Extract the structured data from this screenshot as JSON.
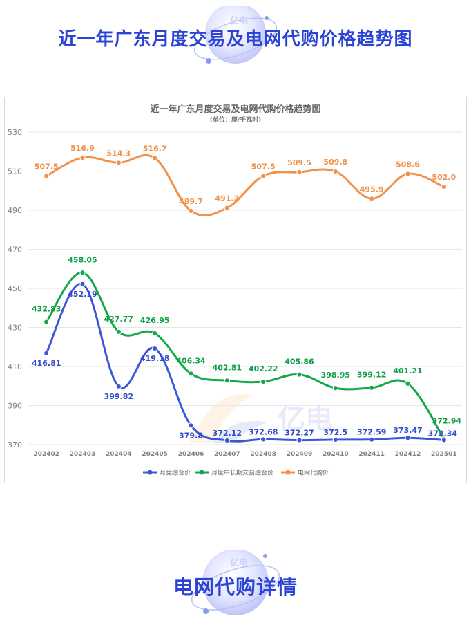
{
  "page": {
    "top_title": "近一年广东月度交易及电网代购价格趋势图",
    "bottom_title": "电网代购详情",
    "logo_text": "亿电"
  },
  "colors": {
    "title_blue": "#2b44d6",
    "series_blue": "#3b57d6",
    "series_green": "#12a84a",
    "series_orange": "#f0914a",
    "grid": "#e3e3e3",
    "axis_text": "#808080"
  },
  "chart_data": {
    "type": "line",
    "title": "近一年广东月度交易及电网代购价格趋势图",
    "subtitle": "(单位：厘/千瓦时)",
    "categories": [
      "202402",
      "202403",
      "202404",
      "202405",
      "202406",
      "202407",
      "202408",
      "202409",
      "202410",
      "202411",
      "202412",
      "202501"
    ],
    "ylim": [
      370,
      530
    ],
    "yticks": [
      370,
      390,
      410,
      430,
      450,
      470,
      490,
      510,
      530
    ],
    "grid": true,
    "legend_position": "bottom",
    "series": [
      {
        "name": "月竞综合价",
        "color": "#3b57d6",
        "values": [
          416.81,
          452.19,
          399.82,
          419.18,
          379.8,
          372.12,
          372.68,
          372.27,
          372.5,
          372.59,
          373.47,
          372.34
        ],
        "labels": [
          "416.81",
          "452.19",
          "399.82",
          "419.18",
          "379.8",
          "372.12",
          "372.68",
          "372.27",
          "372.5",
          "372.59",
          "373.47",
          "372.34"
        ]
      },
      {
        "name": "月度中长期交易综合价",
        "color": "#12a84a",
        "values": [
          432.83,
          458.05,
          427.77,
          426.95,
          406.34,
          402.81,
          402.22,
          405.86,
          398.95,
          399.12,
          401.21,
          372.94
        ],
        "labels": [
          "432.83",
          "458.05",
          "427.77",
          "426.95",
          "406.34",
          "402.81",
          "402.22",
          "405.86",
          "398.95",
          "399.12",
          "401.21",
          "372.94"
        ]
      },
      {
        "name": "电网代购价",
        "color": "#f0914a",
        "values": [
          507.5,
          516.9,
          514.3,
          516.7,
          489.7,
          491.2,
          507.5,
          509.5,
          509.8,
          495.9,
          508.6,
          502.0
        ],
        "labels": [
          "507.5",
          "516.9",
          "514.3",
          "516.7",
          "489.7",
          "491.2",
          "507.5",
          "509.5",
          "509.8",
          "495.9",
          "508.6",
          "502.0"
        ]
      }
    ]
  }
}
